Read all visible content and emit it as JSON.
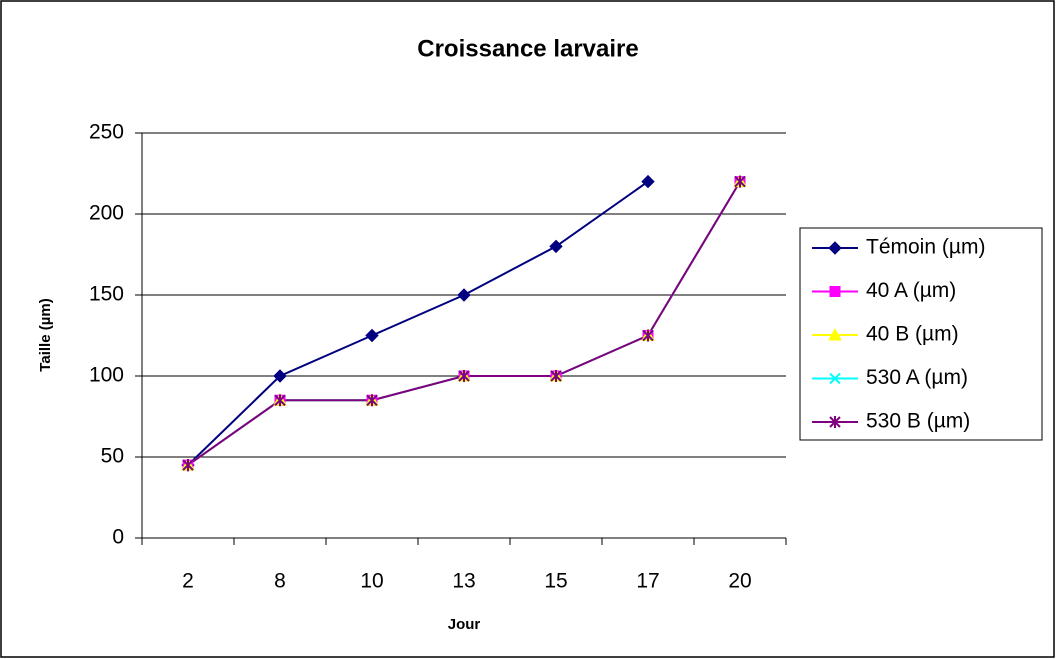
{
  "chart_data": {
    "type": "line",
    "title": "Croissance larvaire",
    "x_label": "Jour",
    "y_label": "Taille (µm)",
    "categories": [
      "2",
      "8",
      "10",
      "13",
      "15",
      "17",
      "20"
    ],
    "series": [
      {
        "name": "Témoin (µm)",
        "color": "#000080",
        "marker": "diamond",
        "values": [
          45,
          100,
          125,
          150,
          180,
          220,
          null
        ]
      },
      {
        "name": "40 A (µm)",
        "color": "#ff00ff",
        "marker": "square",
        "values": [
          45,
          85,
          85,
          100,
          100,
          125,
          220
        ]
      },
      {
        "name": "40 B (µm)",
        "color": "#ffff00",
        "marker": "triangle",
        "values": [
          45,
          85,
          85,
          100,
          100,
          125,
          220
        ]
      },
      {
        "name": "530 A (µm)",
        "color": "#00ffff",
        "marker": "x",
        "values": [
          45,
          85,
          85,
          100,
          100,
          125,
          220
        ]
      },
      {
        "name": "530 B (µm)",
        "color": "#800080",
        "marker": "asterisk",
        "values": [
          45,
          85,
          85,
          100,
          100,
          125,
          220
        ]
      }
    ],
    "ylim": [
      0,
      250
    ],
    "yticks": [
      0,
      50,
      100,
      150,
      200,
      250
    ],
    "grid": true,
    "legend": "right"
  }
}
